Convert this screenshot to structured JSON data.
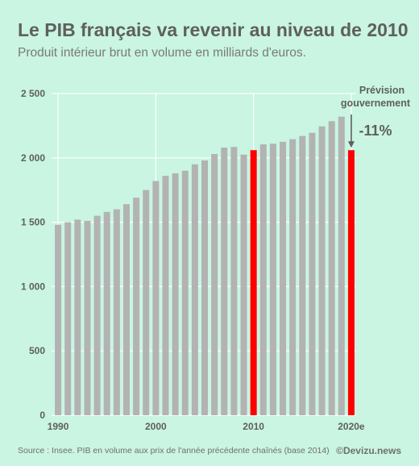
{
  "header": {
    "title": "Le PIB français va revenir au niveau de 2010",
    "subtitle": "Produit intérieur brut en volume en milliards d'euros."
  },
  "footer": {
    "source": "Source : Insee. PIB en volume aux prix de l'année précédente chaînés (base 2014)",
    "brand": "©Devizu.news"
  },
  "colors": {
    "background": "#c9f5e2",
    "bar": "#b3b3b3",
    "highlight": "#ff0000",
    "text": "#5f5f5f",
    "grid": "#ffffff"
  },
  "chart_data": {
    "type": "bar",
    "title": "Le PIB français va revenir au niveau de 2010",
    "subtitle": "Produit intérieur brut en volume en milliards d'euros.",
    "xlabel": "",
    "ylabel": "",
    "ylim": [
      0,
      2500
    ],
    "yticks": [
      0,
      500,
      1000,
      1500,
      2000,
      2500
    ],
    "ytick_labels": [
      "0",
      "500",
      "1 000",
      "1 500",
      "2 000",
      "2 500"
    ],
    "xtick_labels": [
      {
        "category": "1990",
        "label": "1990"
      },
      {
        "category": "2000",
        "label": "2000"
      },
      {
        "category": "2010",
        "label": "2010"
      },
      {
        "category": "2020e",
        "label": "2020e"
      }
    ],
    "grid": true,
    "categories": [
      "1990",
      "1991",
      "1992",
      "1993",
      "1994",
      "1995",
      "1996",
      "1997",
      "1998",
      "1999",
      "2000",
      "2001",
      "2002",
      "2003",
      "2004",
      "2005",
      "2006",
      "2007",
      "2008",
      "2009",
      "2010",
      "2011",
      "2012",
      "2013",
      "2014",
      "2015",
      "2016",
      "2017",
      "2018",
      "2019",
      "2020e"
    ],
    "values": [
      1480,
      1500,
      1520,
      1510,
      1550,
      1580,
      1600,
      1640,
      1690,
      1750,
      1820,
      1860,
      1880,
      1900,
      1950,
      1980,
      2030,
      2080,
      2085,
      2025,
      2060,
      2105,
      2110,
      2125,
      2145,
      2170,
      2195,
      2245,
      2285,
      2320,
      2060
    ],
    "highlighted": [
      "2010",
      "2020e"
    ],
    "annotations": [
      {
        "category": "2020e",
        "text": "Prévision",
        "type": "label"
      },
      {
        "category": "2020e",
        "text": "gouvernement",
        "type": "label"
      },
      {
        "category": "2020e",
        "text": "-11%",
        "type": "change"
      }
    ]
  }
}
